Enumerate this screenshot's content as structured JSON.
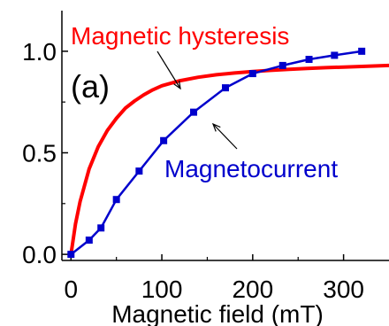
{
  "chart_data": {
    "type": "line",
    "panel_label": "(a)",
    "xlabel": "Magnetic field (mT)",
    "ylabel": "",
    "xlim": [
      -10,
      350
    ],
    "ylim": [
      -0.03,
      1.2
    ],
    "x_ticks": [
      0,
      100,
      200,
      300
    ],
    "x_tick_labels": [
      "0",
      "100",
      "200",
      "300"
    ],
    "y_ticks": [
      0.0,
      0.5,
      1.0
    ],
    "y_tick_labels": [
      "0.0",
      "0.5",
      "1.0"
    ],
    "grid": false,
    "series": [
      {
        "name": "Magnetic hysteresis",
        "color": "#ff0000",
        "marker": "none",
        "x": [
          0,
          5,
          10,
          20,
          30,
          40,
          50,
          60,
          70,
          80,
          90,
          100,
          120,
          140,
          160,
          180,
          200,
          220,
          240,
          260,
          280,
          300,
          320,
          350
        ],
        "y": [
          0.0,
          0.15,
          0.26,
          0.42,
          0.53,
          0.61,
          0.67,
          0.72,
          0.755,
          0.785,
          0.81,
          0.83,
          0.855,
          0.872,
          0.884,
          0.893,
          0.9,
          0.906,
          0.911,
          0.915,
          0.919,
          0.922,
          0.925,
          0.93
        ]
      },
      {
        "name": "Magnetocurrent",
        "color": "#0000cc",
        "marker": "square",
        "x": [
          0,
          20,
          33,
          50,
          75,
          102,
          135,
          170,
          200,
          233,
          262,
          290,
          320
        ],
        "y": [
          0.0,
          0.07,
          0.13,
          0.27,
          0.41,
          0.56,
          0.7,
          0.82,
          0.89,
          0.93,
          0.96,
          0.98,
          1.0
        ]
      }
    ],
    "annotations": [
      {
        "text": "Magnetic hysteresis",
        "color": "#ff0000",
        "points_to": "Magnetic hysteresis"
      },
      {
        "text": "Magnetocurrent",
        "color": "#0000cc",
        "points_to": "Magnetocurrent"
      }
    ]
  }
}
